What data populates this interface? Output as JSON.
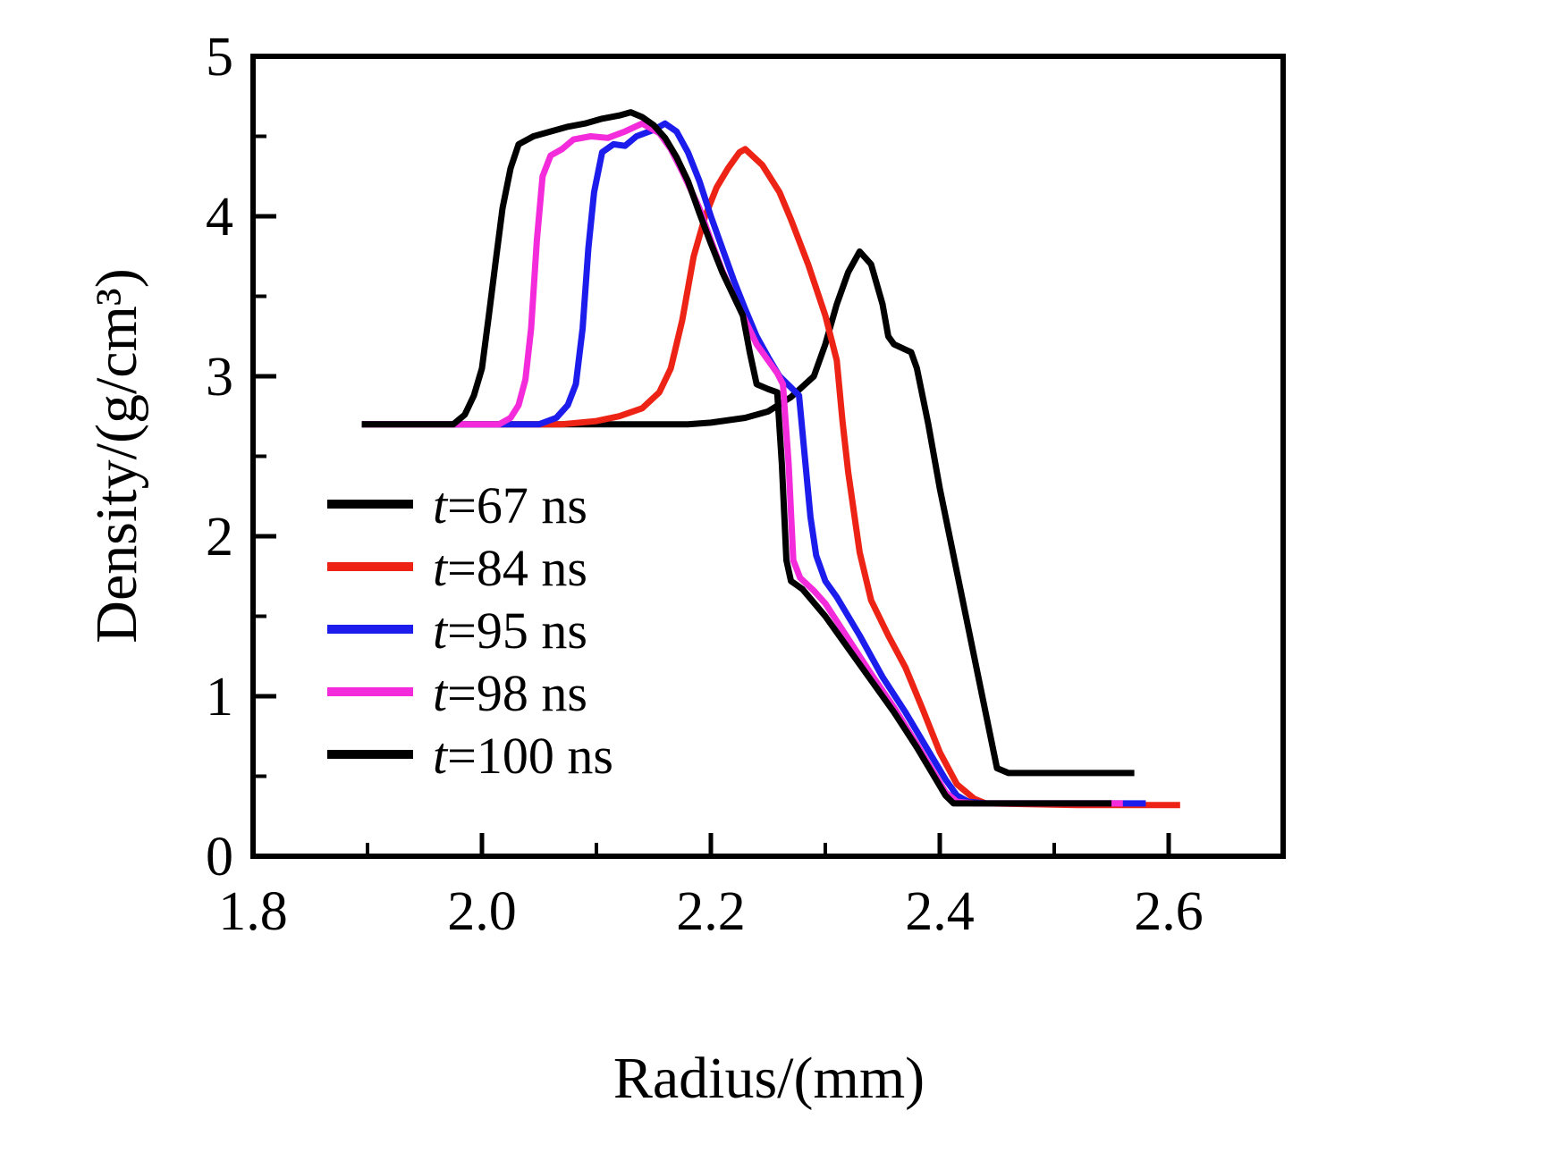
{
  "figure": {
    "background": "#ffffff",
    "axis_color": "#000000"
  },
  "chart_data": {
    "type": "line",
    "title": "",
    "xlabel": "Radius/(mm)",
    "ylabel": "Density/(g/cm³)",
    "xlim": [
      1.8,
      2.7
    ],
    "ylim": [
      0,
      5
    ],
    "grid": false,
    "legend_position": "inside-left-middle",
    "xticks": {
      "major": [
        1.8,
        2.0,
        2.2,
        2.4,
        2.6
      ],
      "labels": [
        "1.8",
        "2.0",
        "2.2",
        "2.4",
        "2.6"
      ],
      "minor": [
        1.9,
        2.1,
        2.3,
        2.5
      ]
    },
    "yticks": {
      "major": [
        0,
        1,
        2,
        3,
        4,
        5
      ],
      "labels": [
        "0",
        "1",
        "2",
        "3",
        "4",
        "5"
      ],
      "minor": [
        0.5,
        1.5,
        2.5,
        3.5,
        4.5
      ]
    },
    "series": [
      {
        "id": "t67",
        "label": "t=67 ns",
        "label_var": "t",
        "label_rest": "=67 ns",
        "color": "#000000",
        "width": 7,
        "points": [
          [
            1.895,
            2.7
          ],
          [
            2.1,
            2.7
          ],
          [
            2.18,
            2.7
          ],
          [
            2.2,
            2.71
          ],
          [
            2.23,
            2.74
          ],
          [
            2.25,
            2.78
          ],
          [
            2.27,
            2.87
          ],
          [
            2.29,
            3.0
          ],
          [
            2.3,
            3.2
          ],
          [
            2.31,
            3.45
          ],
          [
            2.32,
            3.65
          ],
          [
            2.33,
            3.78
          ],
          [
            2.34,
            3.7
          ],
          [
            2.35,
            3.45
          ],
          [
            2.355,
            3.25
          ],
          [
            2.36,
            3.2
          ],
          [
            2.375,
            3.15
          ],
          [
            2.38,
            3.05
          ],
          [
            2.39,
            2.7
          ],
          [
            2.4,
            2.3
          ],
          [
            2.41,
            1.95
          ],
          [
            2.42,
            1.6
          ],
          [
            2.43,
            1.25
          ],
          [
            2.44,
            0.9
          ],
          [
            2.45,
            0.55
          ],
          [
            2.46,
            0.52
          ],
          [
            2.57,
            0.52
          ]
        ]
      },
      {
        "id": "t84",
        "label": "t=84 ns",
        "label_var": "t",
        "label_rest": "=84 ns",
        "color": "#ed2315",
        "width": 7,
        "points": [
          [
            1.895,
            2.7
          ],
          [
            2.07,
            2.7
          ],
          [
            2.1,
            2.72
          ],
          [
            2.12,
            2.75
          ],
          [
            2.14,
            2.8
          ],
          [
            2.155,
            2.9
          ],
          [
            2.165,
            3.05
          ],
          [
            2.175,
            3.35
          ],
          [
            2.185,
            3.75
          ],
          [
            2.195,
            4.0
          ],
          [
            2.205,
            4.18
          ],
          [
            2.215,
            4.3
          ],
          [
            2.225,
            4.4
          ],
          [
            2.23,
            4.42
          ],
          [
            2.245,
            4.32
          ],
          [
            2.26,
            4.15
          ],
          [
            2.27,
            3.98
          ],
          [
            2.285,
            3.7
          ],
          [
            2.3,
            3.38
          ],
          [
            2.31,
            3.1
          ],
          [
            2.315,
            2.72
          ],
          [
            2.32,
            2.4
          ],
          [
            2.33,
            1.9
          ],
          [
            2.34,
            1.6
          ],
          [
            2.355,
            1.38
          ],
          [
            2.37,
            1.18
          ],
          [
            2.385,
            0.92
          ],
          [
            2.4,
            0.65
          ],
          [
            2.415,
            0.45
          ],
          [
            2.43,
            0.36
          ],
          [
            2.44,
            0.33
          ],
          [
            2.52,
            0.32
          ],
          [
            2.61,
            0.32
          ]
        ]
      },
      {
        "id": "t95",
        "label": "t=95 ns",
        "label_var": "t",
        "label_rest": "=95 ns",
        "color": "#1c1cec",
        "width": 7,
        "points": [
          [
            1.895,
            2.7
          ],
          [
            2.05,
            2.7
          ],
          [
            2.065,
            2.74
          ],
          [
            2.075,
            2.82
          ],
          [
            2.082,
            2.95
          ],
          [
            2.088,
            3.3
          ],
          [
            2.093,
            3.8
          ],
          [
            2.098,
            4.15
          ],
          [
            2.105,
            4.4
          ],
          [
            2.115,
            4.45
          ],
          [
            2.125,
            4.44
          ],
          [
            2.135,
            4.5
          ],
          [
            2.15,
            4.54
          ],
          [
            2.16,
            4.58
          ],
          [
            2.17,
            4.53
          ],
          [
            2.18,
            4.4
          ],
          [
            2.19,
            4.22
          ],
          [
            2.2,
            4.0
          ],
          [
            2.21,
            3.8
          ],
          [
            2.22,
            3.6
          ],
          [
            2.23,
            3.42
          ],
          [
            2.24,
            3.25
          ],
          [
            2.25,
            3.12
          ],
          [
            2.26,
            3.0
          ],
          [
            2.27,
            2.93
          ],
          [
            2.277,
            2.88
          ],
          [
            2.282,
            2.5
          ],
          [
            2.287,
            2.12
          ],
          [
            2.292,
            1.88
          ],
          [
            2.3,
            1.72
          ],
          [
            2.31,
            1.62
          ],
          [
            2.33,
            1.38
          ],
          [
            2.35,
            1.12
          ],
          [
            2.37,
            0.9
          ],
          [
            2.39,
            0.66
          ],
          [
            2.405,
            0.48
          ],
          [
            2.415,
            0.38
          ],
          [
            2.425,
            0.34
          ],
          [
            2.44,
            0.33
          ],
          [
            2.58,
            0.33
          ]
        ]
      },
      {
        "id": "t98",
        "label": "t=98 ns",
        "label_var": "t",
        "label_rest": "=98 ns",
        "color": "#f32bdb",
        "width": 7,
        "points": [
          [
            1.895,
            2.7
          ],
          [
            2.015,
            2.7
          ],
          [
            2.025,
            2.74
          ],
          [
            2.032,
            2.82
          ],
          [
            2.038,
            2.98
          ],
          [
            2.043,
            3.3
          ],
          [
            2.048,
            3.85
          ],
          [
            2.053,
            4.25
          ],
          [
            2.06,
            4.38
          ],
          [
            2.07,
            4.42
          ],
          [
            2.08,
            4.48
          ],
          [
            2.095,
            4.5
          ],
          [
            2.11,
            4.49
          ],
          [
            2.125,
            4.53
          ],
          [
            2.14,
            4.58
          ],
          [
            2.155,
            4.52
          ],
          [
            2.165,
            4.42
          ],
          [
            2.175,
            4.28
          ],
          [
            2.19,
            4.05
          ],
          [
            2.2,
            3.85
          ],
          [
            2.21,
            3.66
          ],
          [
            2.22,
            3.5
          ],
          [
            2.23,
            3.35
          ],
          [
            2.24,
            3.2
          ],
          [
            2.25,
            3.1
          ],
          [
            2.258,
            3.02
          ],
          [
            2.263,
            2.95
          ],
          [
            2.268,
            2.45
          ],
          [
            2.272,
            1.85
          ],
          [
            2.278,
            1.74
          ],
          [
            2.29,
            1.66
          ],
          [
            2.3,
            1.58
          ],
          [
            2.32,
            1.36
          ],
          [
            2.34,
            1.14
          ],
          [
            2.36,
            0.93
          ],
          [
            2.38,
            0.7
          ],
          [
            2.395,
            0.52
          ],
          [
            2.405,
            0.4
          ],
          [
            2.415,
            0.34
          ],
          [
            2.43,
            0.33
          ],
          [
            2.56,
            0.33
          ]
        ]
      },
      {
        "id": "t100",
        "label": "t=100 ns",
        "label_var": "t",
        "label_rest": "=100 ns",
        "color": "#000000",
        "width": 7,
        "points": [
          [
            1.895,
            2.7
          ],
          [
            1.975,
            2.7
          ],
          [
            1.985,
            2.76
          ],
          [
            1.993,
            2.88
          ],
          [
            2.0,
            3.05
          ],
          [
            2.006,
            3.38
          ],
          [
            2.012,
            3.72
          ],
          [
            2.018,
            4.05
          ],
          [
            2.025,
            4.3
          ],
          [
            2.032,
            4.45
          ],
          [
            2.045,
            4.5
          ],
          [
            2.06,
            4.53
          ],
          [
            2.075,
            4.56
          ],
          [
            2.09,
            4.58
          ],
          [
            2.105,
            4.61
          ],
          [
            2.12,
            4.63
          ],
          [
            2.13,
            4.65
          ],
          [
            2.14,
            4.62
          ],
          [
            2.15,
            4.57
          ],
          [
            2.16,
            4.49
          ],
          [
            2.17,
            4.37
          ],
          [
            2.18,
            4.22
          ],
          [
            2.19,
            4.02
          ],
          [
            2.2,
            3.83
          ],
          [
            2.21,
            3.65
          ],
          [
            2.22,
            3.5
          ],
          [
            2.228,
            3.38
          ],
          [
            2.234,
            3.15
          ],
          [
            2.24,
            2.95
          ],
          [
            2.25,
            2.92
          ],
          [
            2.258,
            2.9
          ],
          [
            2.262,
            2.45
          ],
          [
            2.266,
            1.85
          ],
          [
            2.27,
            1.72
          ],
          [
            2.28,
            1.67
          ],
          [
            2.3,
            1.5
          ],
          [
            2.32,
            1.3
          ],
          [
            2.34,
            1.1
          ],
          [
            2.36,
            0.9
          ],
          [
            2.38,
            0.68
          ],
          [
            2.395,
            0.5
          ],
          [
            2.405,
            0.38
          ],
          [
            2.412,
            0.33
          ],
          [
            2.46,
            0.33
          ],
          [
            2.55,
            0.33
          ]
        ]
      }
    ]
  }
}
